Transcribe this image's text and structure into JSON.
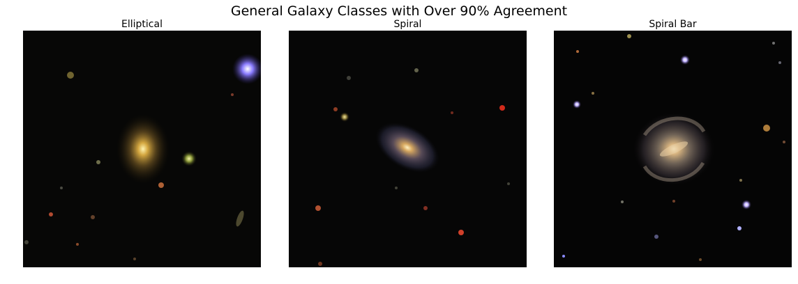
{
  "figure": {
    "title": "General Galaxy Classes with Over 90% Agreement"
  },
  "panels": [
    {
      "title": "Elliptical",
      "image": "elliptical-galaxy-photo"
    },
    {
      "title": "Spiral",
      "image": "spiral-galaxy-photo"
    },
    {
      "title": "Spiral Bar",
      "image": "barred-spiral-galaxy-photo"
    }
  ]
}
